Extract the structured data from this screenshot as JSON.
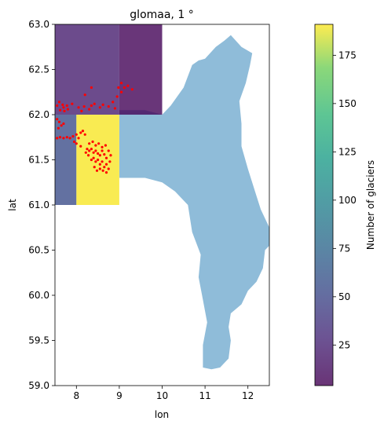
{
  "chart_data": {
    "type": "heatmap",
    "title": "glomaa, 1 °",
    "xlabel": "lon",
    "ylabel": "lat",
    "xlim": [
      7.5,
      12.5
    ],
    "ylim": [
      59.0,
      63.0
    ],
    "xticks": [
      "8",
      "9",
      "10",
      "11",
      "12"
    ],
    "yticks": [
      "59.0",
      "59.5",
      "60.0",
      "60.5",
      "61.0",
      "61.5",
      "62.0",
      "62.5",
      "63.0"
    ],
    "colorbar": {
      "label": "Number of glaciers",
      "range": [
        4,
        191
      ],
      "ticks": [
        "25",
        "50",
        "75",
        "100",
        "125",
        "150",
        "175"
      ],
      "colormap": "viridis",
      "alpha": 0.8
    },
    "grid_cells": [
      {
        "lon_min": 7.5,
        "lon_max": 9.0,
        "lat_min": 62.0,
        "lat_max": 63.0,
        "value": 22
      },
      {
        "lon_min": 9.0,
        "lon_max": 10.0,
        "lat_min": 62.0,
        "lat_max": 63.0,
        "value": 6
      },
      {
        "lon_min": 7.5,
        "lon_max": 8.0,
        "lat_min": 61.0,
        "lat_max": 62.0,
        "value": 55
      },
      {
        "lon_min": 8.0,
        "lon_max": 9.0,
        "lat_min": 61.0,
        "lat_max": 62.0,
        "value": 190
      }
    ],
    "basin": {
      "name": "glomaa",
      "color": "#8fbcd9",
      "outline": [
        [
          9.0,
          62.05
        ],
        [
          9.6,
          62.05
        ],
        [
          10.0,
          62.0
        ],
        [
          10.2,
          62.1
        ],
        [
          10.5,
          62.3
        ],
        [
          10.7,
          62.55
        ],
        [
          10.85,
          62.6
        ],
        [
          11.0,
          62.62
        ],
        [
          11.25,
          62.75
        ],
        [
          11.45,
          62.82
        ],
        [
          11.6,
          62.88
        ],
        [
          11.85,
          62.75
        ],
        [
          12.1,
          62.68
        ],
        [
          12.05,
          62.55
        ],
        [
          11.95,
          62.35
        ],
        [
          11.8,
          62.15
        ],
        [
          11.85,
          61.9
        ],
        [
          11.85,
          61.65
        ],
        [
          12.0,
          61.4
        ],
        [
          12.2,
          61.1
        ],
        [
          12.3,
          60.95
        ],
        [
          12.5,
          60.75
        ],
        [
          12.5,
          60.55
        ],
        [
          12.4,
          60.5
        ],
        [
          12.35,
          60.3
        ],
        [
          12.2,
          60.15
        ],
        [
          12.0,
          60.05
        ],
        [
          11.85,
          59.9
        ],
        [
          11.6,
          59.8
        ],
        [
          11.55,
          59.65
        ],
        [
          11.6,
          59.5
        ],
        [
          11.55,
          59.3
        ],
        [
          11.35,
          59.2
        ],
        [
          11.15,
          59.18
        ],
        [
          10.95,
          59.2
        ],
        [
          10.95,
          59.45
        ],
        [
          11.05,
          59.7
        ],
        [
          10.95,
          59.95
        ],
        [
          10.85,
          60.2
        ],
        [
          10.9,
          60.45
        ],
        [
          10.7,
          60.7
        ],
        [
          10.6,
          61.0
        ],
        [
          10.3,
          61.15
        ],
        [
          10.0,
          61.25
        ],
        [
          9.6,
          61.3
        ],
        [
          9.0,
          61.3
        ],
        [
          9.0,
          62.05
        ]
      ]
    },
    "glacier_points": [
      [
        7.55,
        62.1
      ],
      [
        7.62,
        62.05
      ],
      [
        7.7,
        62.08
      ],
      [
        7.78,
        62.1
      ],
      [
        7.6,
        62.14
      ],
      [
        7.68,
        62.11
      ],
      [
        7.72,
        62.04
      ],
      [
        7.8,
        62.06
      ],
      [
        7.9,
        62.12
      ],
      [
        8.05,
        62.08
      ],
      [
        8.12,
        62.04
      ],
      [
        8.18,
        62.09
      ],
      [
        8.3,
        62.06
      ],
      [
        8.42,
        62.12
      ],
      [
        8.35,
        62.1
      ],
      [
        8.55,
        62.08
      ],
      [
        8.62,
        62.11
      ],
      [
        8.75,
        62.09
      ],
      [
        8.85,
        62.14
      ],
      [
        8.9,
        62.07
      ],
      [
        8.95,
        62.2
      ],
      [
        8.98,
        62.3
      ],
      [
        9.05,
        62.35
      ],
      [
        9.12,
        62.3
      ],
      [
        9.2,
        62.32
      ],
      [
        9.3,
        62.28
      ],
      [
        9.05,
        62.25
      ],
      [
        8.35,
        62.3
      ],
      [
        8.2,
        62.22
      ],
      [
        7.55,
        61.95
      ],
      [
        7.6,
        61.92
      ],
      [
        7.65,
        61.88
      ],
      [
        7.58,
        61.85
      ],
      [
        7.7,
        61.9
      ],
      [
        7.55,
        61.74
      ],
      [
        7.62,
        61.75
      ],
      [
        7.7,
        61.74
      ],
      [
        7.78,
        61.75
      ],
      [
        7.85,
        61.74
      ],
      [
        7.92,
        61.76
      ],
      [
        8.0,
        61.78
      ],
      [
        8.05,
        61.74
      ],
      [
        8.1,
        61.8
      ],
      [
        8.15,
        61.82
      ],
      [
        8.2,
        61.78
      ],
      [
        7.95,
        61.7
      ],
      [
        8.0,
        61.68
      ],
      [
        8.1,
        61.65
      ],
      [
        8.25,
        61.62
      ],
      [
        8.3,
        61.6
      ],
      [
        8.35,
        61.62
      ],
      [
        8.4,
        61.58
      ],
      [
        8.45,
        61.6
      ],
      [
        8.5,
        61.57
      ],
      [
        8.55,
        61.55
      ],
      [
        8.6,
        61.6
      ],
      [
        8.65,
        61.56
      ],
      [
        8.7,
        61.52
      ],
      [
        8.28,
        61.55
      ],
      [
        8.35,
        61.5
      ],
      [
        8.4,
        61.52
      ],
      [
        8.45,
        61.48
      ],
      [
        8.5,
        61.5
      ],
      [
        8.55,
        61.45
      ],
      [
        8.6,
        61.48
      ],
      [
        8.65,
        61.42
      ],
      [
        8.7,
        61.45
      ],
      [
        8.75,
        61.4
      ],
      [
        8.42,
        61.42
      ],
      [
        8.48,
        61.38
      ],
      [
        8.55,
        61.4
      ],
      [
        8.62,
        61.38
      ],
      [
        8.7,
        61.36
      ],
      [
        8.3,
        61.68
      ],
      [
        8.38,
        61.7
      ],
      [
        8.45,
        61.66
      ],
      [
        8.52,
        61.68
      ],
      [
        8.6,
        61.64
      ],
      [
        8.68,
        61.66
      ],
      [
        8.75,
        61.6
      ],
      [
        8.8,
        61.55
      ],
      [
        8.78,
        61.48
      ],
      [
        8.22,
        61.58
      ]
    ]
  }
}
